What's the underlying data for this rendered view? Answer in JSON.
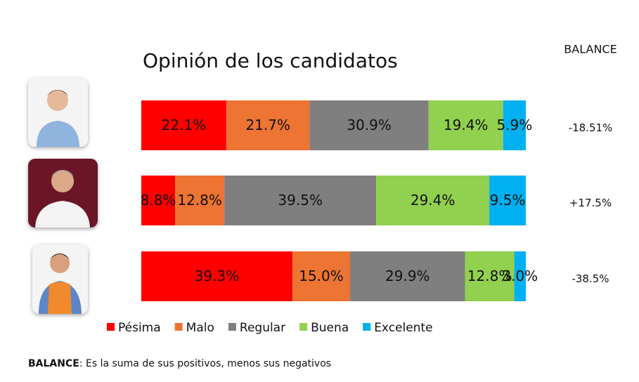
{
  "chart_data": {
    "type": "stacked-bar-horizontal",
    "title": "Opinión de los candidatos",
    "categories": [
      null,
      null,
      null
    ],
    "xlim": [
      0,
      100
    ],
    "series": [
      {
        "name": "Pésima",
        "color": "#ff0000",
        "values": [
          22.1,
          8.8,
          39.3
        ],
        "value_labels": [
          "22.1%",
          "8.8%",
          "39.3%"
        ]
      },
      {
        "name": "Malo",
        "color": "#ed7432",
        "values": [
          21.7,
          12.8,
          15.0
        ],
        "value_labels": [
          "21.7%",
          "12.8%",
          "15.0%"
        ]
      },
      {
        "name": "Regular",
        "color": "#7f7f7f",
        "values": [
          30.9,
          39.5,
          29.9
        ],
        "value_labels": [
          "30.9%",
          "39.5%",
          "29.9%"
        ]
      },
      {
        "name": "Buena",
        "color": "#92d050",
        "values": [
          19.4,
          29.4,
          12.8
        ],
        "value_labels": [
          "19.4%",
          "29.4%",
          "12.8%"
        ]
      },
      {
        "name": "Excelente",
        "color": "#00b0f0",
        "values": [
          5.9,
          9.5,
          3.0
        ],
        "value_labels": [
          "5.9%",
          "9.5%",
          "3.0%"
        ]
      }
    ],
    "balance": {
      "title": "BALANCE",
      "values": [
        -18.51,
        17.5,
        -38.5
      ],
      "value_labels": [
        "-18.51%",
        "+17.5%",
        "-38.5%"
      ]
    },
    "footnote": {
      "label": "BALANCE",
      "text": ": Es la suma de sus positivos, menos sus negativos"
    }
  }
}
